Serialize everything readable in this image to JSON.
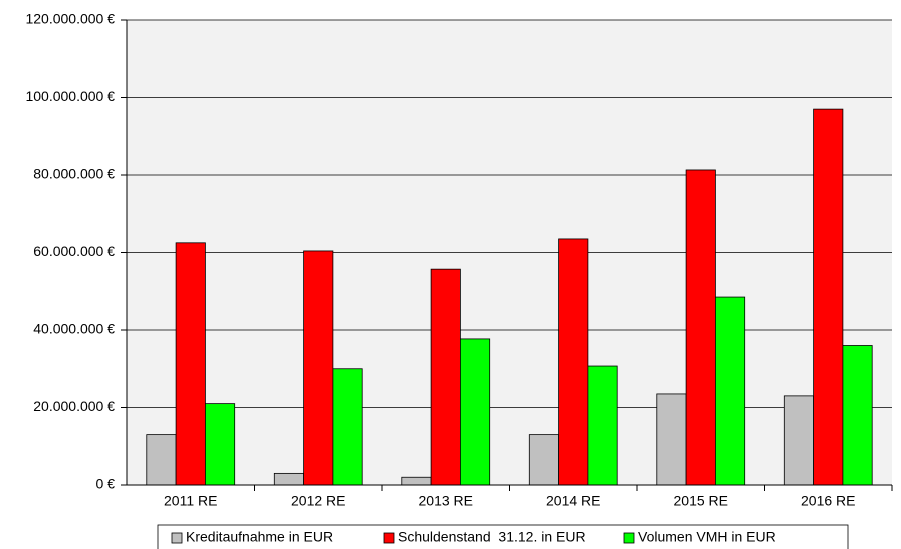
{
  "chart_data": {
    "type": "bar",
    "categories": [
      "2011 RE",
      "2012 RE",
      "2013 RE",
      "2014 RE",
      "2015 RE",
      "2016 RE"
    ],
    "series": [
      {
        "name": "Kreditaufnahme in EUR",
        "color": "#c0c0c0",
        "values": [
          13000000,
          3000000,
          2000000,
          13000000,
          23500000,
          23000000
        ]
      },
      {
        "name": "Schuldenstand  31.12. in EUR",
        "color": "#ff0000",
        "values": [
          62500000,
          60400000,
          55700000,
          63500000,
          81300000,
          97000000
        ]
      },
      {
        "name": "Volumen VMH in EUR",
        "color": "#00ff00",
        "values": [
          21000000,
          30000000,
          37700000,
          30700000,
          48500000,
          36000000
        ]
      }
    ],
    "ylim": [
      0,
      120000000
    ],
    "yticks": [
      {
        "value": 0,
        "label": "0 €"
      },
      {
        "value": 20000000,
        "label": "20.000.000 €"
      },
      {
        "value": 40000000,
        "label": "40.000.000 €"
      },
      {
        "value": 60000000,
        "label": "60.000.000 €"
      },
      {
        "value": 80000000,
        "label": "80.000.000 €"
      },
      {
        "value": 100000000,
        "label": "100.000.000 €"
      },
      {
        "value": 120000000,
        "label": "120.000.000 €"
      }
    ],
    "grid": true,
    "legend": "bottom"
  }
}
